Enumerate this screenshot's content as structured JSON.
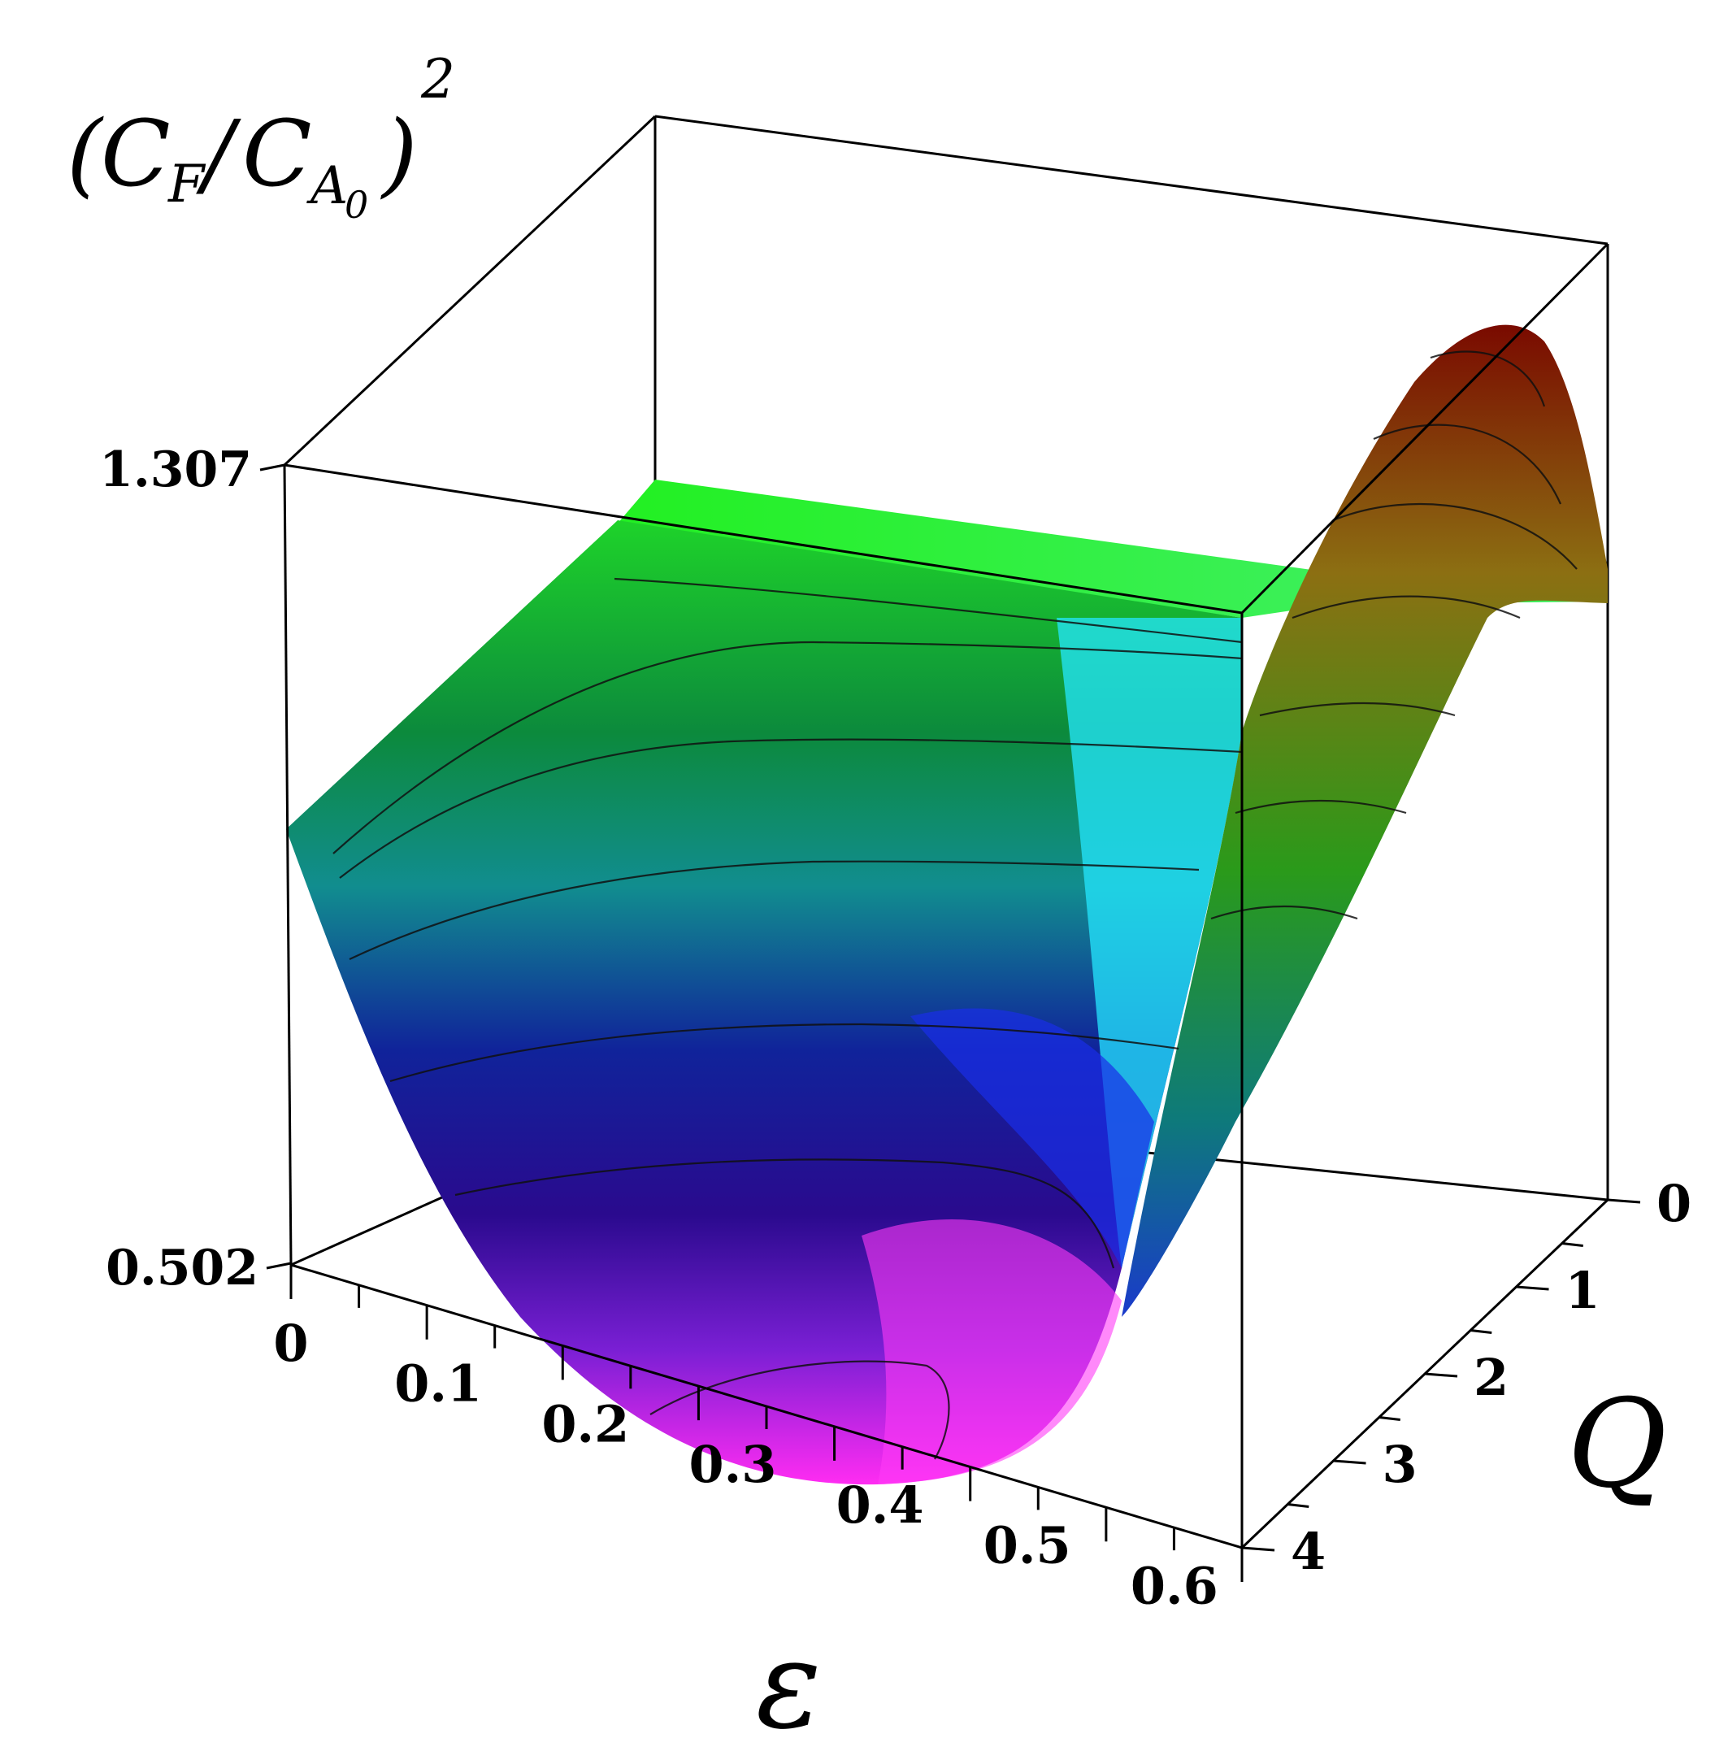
{
  "chart_data": {
    "type": "surface3d",
    "z_title_parts": {
      "open": "(",
      "c1": "C",
      "sub1": "F",
      "slash": "/",
      "c2": "C",
      "sub2": "A",
      "subsub2": "0",
      "close": ")",
      "sup": "2"
    },
    "x_axis": {
      "label": "ε",
      "ticks": [
        "0",
        "0.1",
        "0.2",
        "0.3",
        "0.4",
        "0.5",
        "0.6"
      ],
      "range": [
        0,
        0.7
      ]
    },
    "y_axis": {
      "label": "Q",
      "ticks": [
        "0",
        "1",
        "2",
        "3",
        "4"
      ],
      "range": [
        0,
        4
      ]
    },
    "z_axis": {
      "ticks": [
        "1.307",
        "0.502"
      ],
      "range": [
        0.502,
        1.307
      ]
    },
    "contours": 7,
    "colormap": [
      "#ff44ff",
      "#7a22ee",
      "#10109a",
      "#1d44dd",
      "#22eeff",
      "#10a070",
      "#22ee22",
      "#8a6a10",
      "#8a0a00"
    ]
  }
}
